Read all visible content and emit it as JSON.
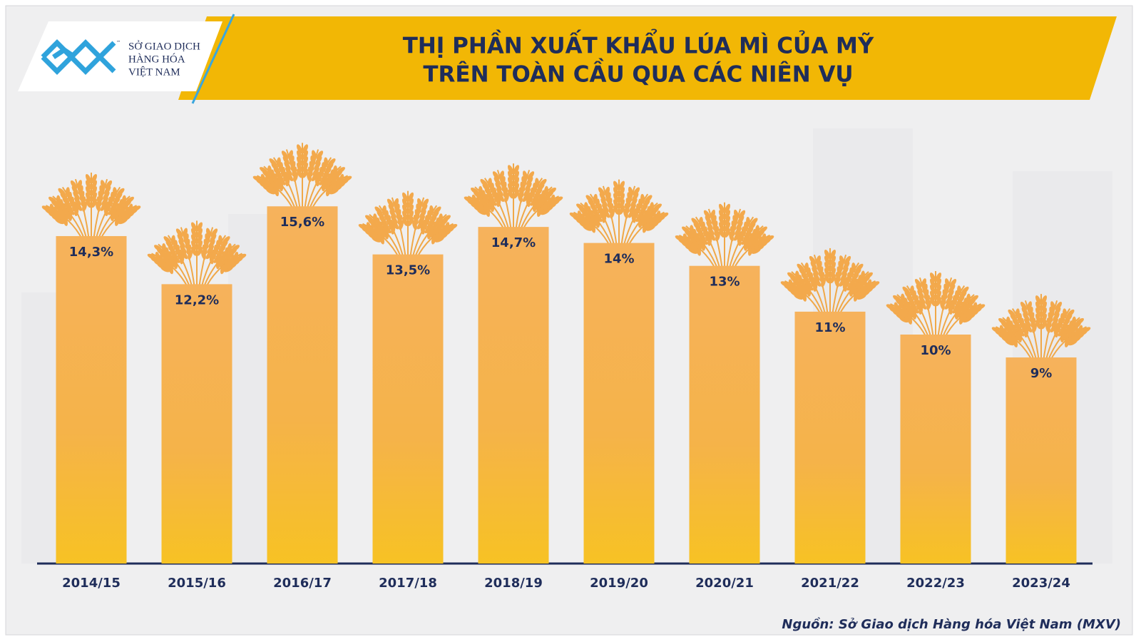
{
  "logo": {
    "lines": [
      "SỞ GIAO DỊCH",
      "HÀNG HÓA",
      "VIỆT NAM"
    ],
    "tm": "™"
  },
  "chart_data": {
    "type": "bar",
    "title": [
      "THỊ PHẦN XUẤT KHẨU LÚA MÌ CỦA MỸ",
      "TRÊN TOÀN CẦU QUA CÁC NIÊN VỤ"
    ],
    "categories": [
      "2014/15",
      "2015/16",
      "2016/17",
      "2017/18",
      "2018/19",
      "2019/20",
      "2020/21",
      "2021/22",
      "2022/23",
      "2023/24"
    ],
    "values": [
      14.3,
      12.2,
      15.6,
      13.5,
      14.7,
      14,
      13,
      11,
      10,
      9
    ],
    "value_labels": [
      "14,3%",
      "12,2%",
      "15,6%",
      "13,5%",
      "14,7%",
      "14%",
      "13%",
      "11%",
      "10%",
      "9%"
    ],
    "color": "#f5b04f",
    "source": "Nguồn: Sở Giao dịch Hàng hóa Việt Nam (MXV)"
  }
}
